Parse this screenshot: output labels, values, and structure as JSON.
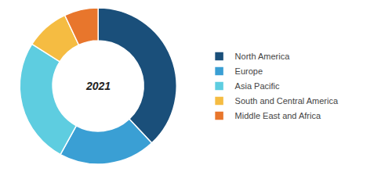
{
  "chart_data": {
    "type": "pie",
    "categories": [
      "North America",
      "Europe",
      "Asia Pacific",
      "South and Central America",
      "Middle East and Africa"
    ],
    "values": [
      38,
      20,
      26,
      9,
      7
    ],
    "colors": [
      "#1a4f7a",
      "#3a9fd4",
      "#5ecde0",
      "#f5bc42",
      "#e8762c"
    ],
    "annotations": [
      "2021"
    ],
    "legend": "right"
  }
}
